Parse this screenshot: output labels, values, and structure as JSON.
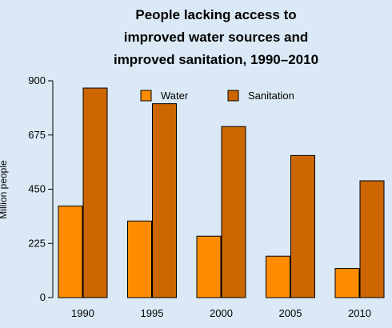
{
  "chart_data": {
    "type": "bar",
    "title_lines": [
      "People lacking access to",
      "improved water sources and",
      "improved sanitation, 1990–2010"
    ],
    "xlabel": "",
    "ylabel": "Million people",
    "categories": [
      "1990",
      "1995",
      "2000",
      "2005",
      "2010"
    ],
    "series": [
      {
        "name": "Water",
        "color": "#ff8c00",
        "values": [
          380,
          318,
          255,
          172,
          121
        ]
      },
      {
        "name": "Sanitation",
        "color": "#cc6600",
        "values": [
          870,
          805,
          710,
          590,
          485
        ]
      }
    ],
    "ylim": [
      0,
      900
    ],
    "yticks": [
      0,
      225,
      450,
      675,
      900
    ],
    "legend": "top-center",
    "grid": false
  }
}
